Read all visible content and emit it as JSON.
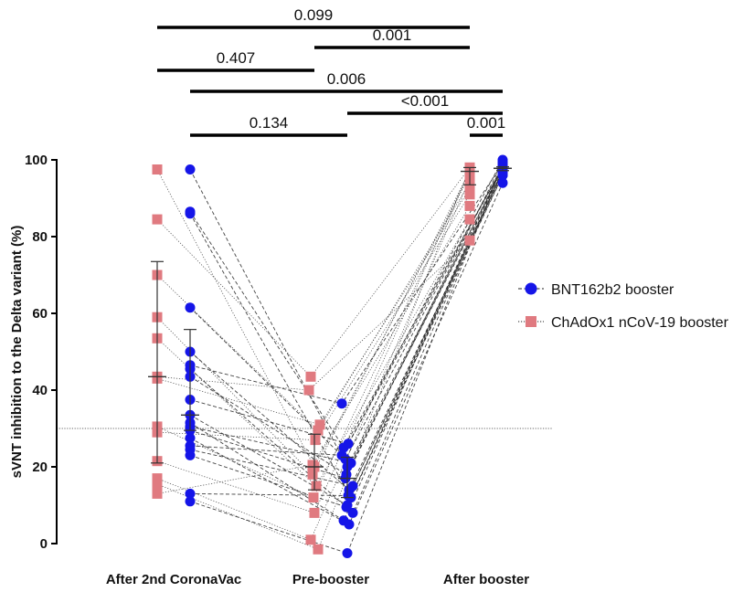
{
  "chart_data": {
    "type": "scatter",
    "ylabel": "sVNT inhibition to the Delta variant (%)",
    "xlabel": "",
    "categories": [
      "After 2nd CoronaVac",
      "Pre-booster",
      "After booster"
    ],
    "ylim": [
      0,
      100
    ],
    "yticks": [
      0,
      20,
      40,
      60,
      80,
      100
    ],
    "threshold": 30,
    "grid": false,
    "legend_position": "right",
    "colors": {
      "bnt": "#1515e8",
      "chad": "#e07a80",
      "axis": "#000000"
    },
    "series": [
      {
        "name": "BNT162b2 booster",
        "marker": "circle",
        "line": "dashed",
        "subjects": [
          [
            97.5,
            20.0,
            97.5
          ],
          [
            86.5,
            25.0,
            98.0
          ],
          [
            86.0,
            12.0,
            97.0
          ],
          [
            61.5,
            22.0,
            98.5
          ],
          [
            50.0,
            14.0,
            96.5
          ],
          [
            46.5,
            36.5,
            99.0
          ],
          [
            45.5,
            8.0,
            97.5
          ],
          [
            43.5,
            18.0,
            98.0
          ],
          [
            37.5,
            26.0,
            100.0
          ],
          [
            33.5,
            10.0,
            96.0
          ],
          [
            31.5,
            6.0,
            98.5
          ],
          [
            30.5,
            21.0,
            97.0
          ],
          [
            29.5,
            17.0,
            99.5
          ],
          [
            27.5,
            5.0,
            94.0
          ],
          [
            25.5,
            23.0,
            98.0
          ],
          [
            24.5,
            15.0,
            97.0
          ],
          [
            23.0,
            9.5,
            98.5
          ],
          [
            13.0,
            12.5,
            96.0
          ],
          [
            11.0,
            -2.5,
            99.0
          ]
        ]
      },
      {
        "name": "ChAdOx1 nCoV-19 booster",
        "marker": "square",
        "line": "dotted",
        "subjects": [
          [
            97.5,
            20.0,
            96.0
          ],
          [
            84.5,
            43.5,
            98.0
          ],
          [
            70.0,
            29.5,
            94.0
          ],
          [
            59.0,
            18.0,
            97.0
          ],
          [
            53.5,
            15.0,
            84.5
          ],
          [
            43.5,
            40.0,
            79.0
          ],
          [
            43.0,
            31.0,
            92.5
          ],
          [
            30.5,
            12.0,
            96.5
          ],
          [
            29.0,
            27.0,
            91.0
          ],
          [
            21.5,
            8.0,
            97.5
          ],
          [
            17.0,
            1.0,
            95.0
          ],
          [
            15.5,
            -1.5,
            98.0
          ],
          [
            13.0,
            20.5,
            88.0
          ]
        ]
      }
    ],
    "error_bars": [
      {
        "series": "ChAdOx1 nCoV-19 booster",
        "group": "After 2nd CoronaVac",
        "mean": 43.5,
        "low": 21.0,
        "high": 73.5
      },
      {
        "series": "BNT162b2 booster",
        "group": "After 2nd CoronaVac",
        "mean": 33.5,
        "low": 29.5,
        "high": 55.8
      },
      {
        "series": "ChAdOx1 nCoV-19 booster",
        "group": "Pre-booster",
        "mean": 20.0,
        "low": 14.0,
        "high": 28.5
      },
      {
        "series": "BNT162b2 booster",
        "group": "Pre-booster",
        "mean": 17.0,
        "low": 12.0,
        "high": 22.5
      },
      {
        "series": "ChAdOx1 nCoV-19 booster",
        "group": "After booster",
        "mean": 97.0,
        "low": 93.5,
        "high": 98.0
      },
      {
        "series": "BNT162b2 booster",
        "group": "After booster",
        "mean": 97.8,
        "low": 97.2,
        "high": 98.2
      }
    ],
    "comparisons": [
      {
        "label": "0.099",
        "from": "After 2nd CoronaVac:ChAdOx1 nCoV-19 booster",
        "to": "After booster:ChAdOx1 nCoV-19 booster"
      },
      {
        "label": "0.001",
        "from": "Pre-booster:ChAdOx1 nCoV-19 booster",
        "to": "After booster:ChAdOx1 nCoV-19 booster"
      },
      {
        "label": "0.407",
        "from": "After 2nd CoronaVac:ChAdOx1 nCoV-19 booster",
        "to": "Pre-booster:ChAdOx1 nCoV-19 booster"
      },
      {
        "label": "0.006",
        "from": "After 2nd CoronaVac:BNT162b2 booster",
        "to": "After booster:BNT162b2 booster"
      },
      {
        "label": "<0.001",
        "from": "Pre-booster:BNT162b2 booster",
        "to": "After booster:BNT162b2 booster"
      },
      {
        "label": "0.134",
        "from": "After 2nd CoronaVac:BNT162b2 booster",
        "to": "Pre-booster:BNT162b2 booster"
      },
      {
        "label": "0.001",
        "from": "After booster:ChAdOx1 nCoV-19 booster",
        "to": "After booster:BNT162b2 booster"
      }
    ]
  }
}
